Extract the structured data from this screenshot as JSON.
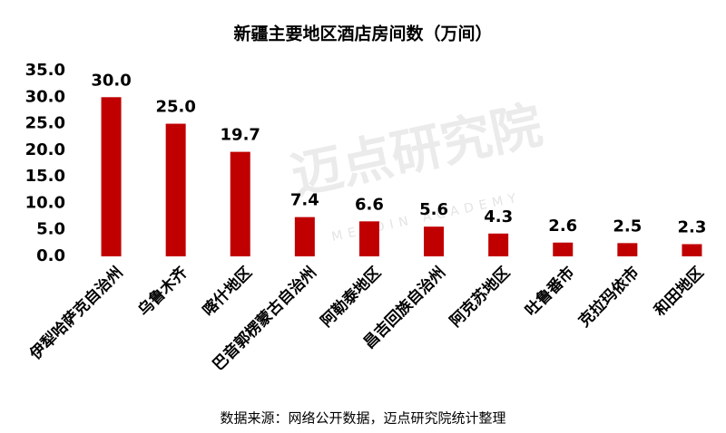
{
  "chart_data": {
    "type": "bar",
    "title": "新疆主要地区酒店房间数（万间）",
    "categories": [
      "伊犁哈萨克自治州",
      "乌鲁木齐",
      "喀什地区",
      "巴音郭楞蒙古自治州",
      "阿勒泰地区",
      "昌吉回族自治州",
      "阿克苏地区",
      "吐鲁番市",
      "克拉玛依市",
      "和田地区"
    ],
    "values": [
      30.0,
      25.0,
      19.7,
      7.4,
      6.6,
      5.6,
      4.3,
      2.6,
      2.5,
      2.3
    ],
    "value_labels": [
      "30.0",
      "25.0",
      "19.7",
      "7.4",
      "6.6",
      "5.6",
      "4.3",
      "2.6",
      "2.5",
      "2.3"
    ],
    "color": "#c00000",
    "ylim": [
      0,
      35
    ],
    "yticks": [
      {
        "value": 0,
        "label": "0.0"
      },
      {
        "value": 5,
        "label": "5.0"
      },
      {
        "value": 10,
        "label": "10.0"
      },
      {
        "value": 15,
        "label": "15.0"
      },
      {
        "value": 20,
        "label": "20.0"
      },
      {
        "value": 25,
        "label": "25.0"
      },
      {
        "value": 30,
        "label": "30.0"
      },
      {
        "value": 35,
        "label": "35.0"
      }
    ],
    "grid": false,
    "source": "数据来源：网络公开数据，迈点研究院统计整理",
    "watermark": "迈点研究院",
    "watermark_subtitle": "MEADIN ACADEMY"
  }
}
